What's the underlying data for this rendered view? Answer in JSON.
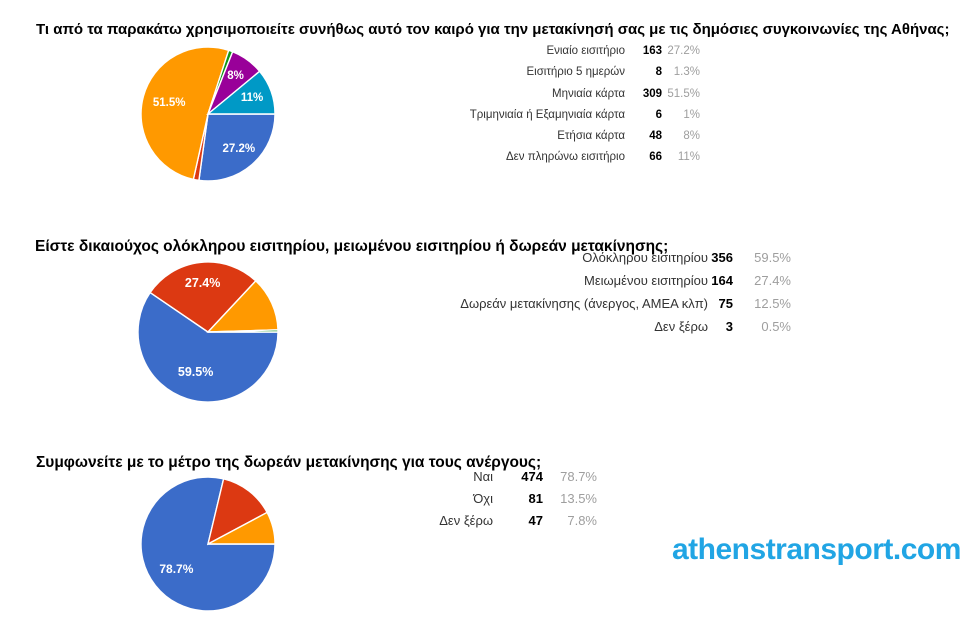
{
  "page": {
    "background": "#ffffff",
    "watermark_text": "athenstransport.com",
    "watermark_color": "#21A5E4"
  },
  "palette": [
    "#3B6CC9",
    "#DC3912",
    "#FF9900",
    "#109618",
    "#990099",
    "#0099C6"
  ],
  "chart_data": [
    {
      "type": "pie",
      "title": "Τι από τα παρακάτω χρησιμοποιείτε συνήθως αυτό τον καιρό για την μετακίνησή σας με τις δημόσιες συγκοινωνίες της Αθήνας;",
      "categories": [
        "Ενιαίο εισιτήριο",
        "Εισιτήριο 5 ημερών",
        "Μηνιαία κάρτα",
        "Τριμηνιαία ή Εξαμηνιαία κάρτα",
        "Ετήσια κάρτα",
        "Δεν πληρώνω εισιτήριο"
      ],
      "values": [
        163,
        8,
        309,
        6,
        48,
        66
      ],
      "percent_labels": [
        "27.2%",
        "1.3%",
        "51.5%",
        "1%",
        "8%",
        "11%"
      ],
      "pie_slice_labels": [
        "27.2%",
        null,
        "51.5%",
        null,
        "8%",
        "11%"
      ],
      "colors": [
        "#3B6CC9",
        "#DC3912",
        "#FF9900",
        "#109618",
        "#990099",
        "#0099C6"
      ],
      "legend_position": "none",
      "start_angle_deg": 90,
      "direction": "clockwise"
    },
    {
      "type": "pie",
      "title": "Είστε δικαιούχος ολόκληρου εισιτηρίου, μειωμένου εισιτηρίου ή δωρεάν μετακίνησης;",
      "categories": [
        "Ολόκληρου εισιτηρίου",
        "Μειωμένου εισιτηρίου",
        "Δωρεάν μετακίνησης (άνεργος, ΑΜΕΑ κλπ)",
        "Δεν ξέρω"
      ],
      "values": [
        356,
        164,
        75,
        3
      ],
      "percent_labels": [
        "59.5%",
        "27.4%",
        "12.5%",
        "0.5%"
      ],
      "pie_slice_labels": [
        "59.5%",
        "27.4%",
        null,
        null
      ],
      "colors": [
        "#3B6CC9",
        "#DC3912",
        "#FF9900",
        "#109618"
      ],
      "legend_position": "none",
      "start_angle_deg": 90,
      "direction": "clockwise"
    },
    {
      "type": "pie",
      "title": "Συμφωνείτε με το μέτρο της δωρεάν μετακίνησης για τους ανέργους;",
      "categories": [
        "Ναι",
        "Όχι",
        "Δεν ξέρω"
      ],
      "values": [
        474,
        81,
        47
      ],
      "percent_labels": [
        "78.7%",
        "13.5%",
        "7.8%"
      ],
      "pie_slice_labels": [
        "78.7%",
        null,
        null
      ],
      "colors": [
        "#3B6CC9",
        "#DC3912",
        "#FF9900"
      ],
      "legend_position": "none",
      "start_angle_deg": 90,
      "direction": "clockwise"
    }
  ]
}
